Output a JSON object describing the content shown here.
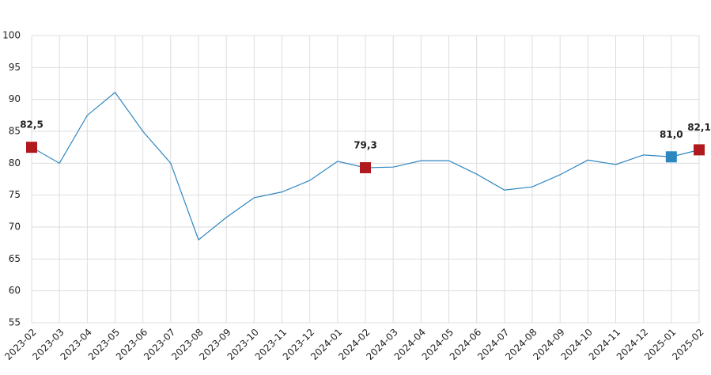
{
  "chart_data": {
    "type": "line",
    "categories": [
      "2023-02",
      "2023-03",
      "2023-04",
      "2023-05",
      "2023-06",
      "2023-07",
      "2023-08",
      "2023-09",
      "2023-10",
      "2023-11",
      "2023-12",
      "2024-01",
      "2024-02",
      "2024-03",
      "2024-04",
      "2024-05",
      "2024-06",
      "2024-07",
      "2024-08",
      "2024-09",
      "2024-10",
      "2024-11",
      "2024-12",
      "2025-01",
      "2025-02"
    ],
    "series": [
      {
        "color": "#2e86c1",
        "values": [
          82.5,
          80.0,
          87.5,
          91.1,
          85.0,
          80.0,
          68.0,
          71.5,
          74.6,
          75.5,
          77.3,
          80.3,
          79.3,
          79.4,
          80.4,
          80.4,
          78.3,
          75.8,
          76.3,
          78.2,
          80.5,
          79.8,
          81.3,
          81.0,
          82.1
        ],
        "value_labels": [
          "82,5",
          null,
          null,
          null,
          null,
          null,
          null,
          null,
          null,
          null,
          null,
          null,
          "79,3",
          null,
          null,
          null,
          null,
          null,
          null,
          null,
          null,
          null,
          null,
          "81,0",
          "82,1"
        ],
        "marker_colors": [
          "#b0191e",
          null,
          null,
          null,
          null,
          null,
          null,
          null,
          null,
          null,
          null,
          null,
          "#b0191e",
          null,
          null,
          null,
          null,
          null,
          null,
          null,
          null,
          null,
          null,
          "#2e86c1",
          "#b0191e"
        ]
      }
    ],
    "ylim": [
      55,
      100
    ],
    "yticks": [
      55,
      60,
      65,
      70,
      75,
      80,
      85,
      90,
      95,
      100
    ],
    "grid": true
  }
}
